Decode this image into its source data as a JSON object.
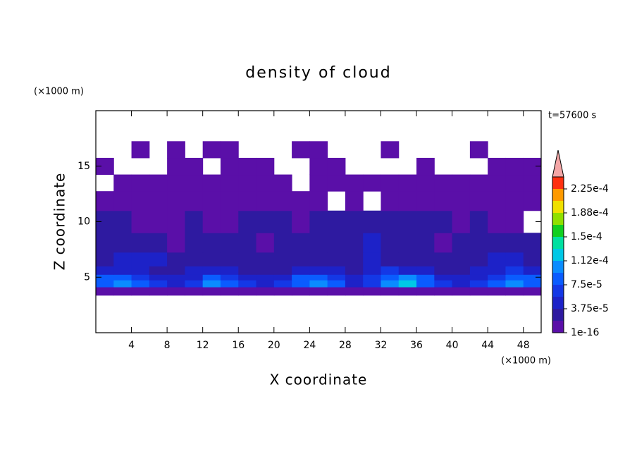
{
  "chart_data": {
    "type": "contour",
    "title": "density of cloud",
    "time_label": "t=57600 s",
    "x_label": "X coordinate",
    "y_label": "Z coordinate",
    "x_unit": "(×1000 m)",
    "y_unit": "(×1000 m)",
    "xlim": [
      0,
      50
    ],
    "ylim": [
      0,
      20
    ],
    "xticks": [
      4,
      8,
      12,
      16,
      20,
      24,
      28,
      32,
      36,
      40,
      44,
      48
    ],
    "yticks": [
      5,
      10,
      15
    ],
    "x": [
      1,
      3,
      5,
      7,
      9,
      11,
      13,
      15,
      17,
      19,
      21,
      23,
      25,
      27,
      29,
      31,
      33,
      35,
      37,
      39,
      41,
      43,
      45,
      47,
      49
    ],
    "y": [
      3.75,
      4.5,
      5,
      5.5,
      6.5,
      8,
      10,
      12,
      13.5,
      15,
      16.5
    ],
    "z": [
      [
        1e-05,
        1e-05,
        1e-05,
        1e-05,
        1e-05,
        1e-05,
        1e-05,
        1e-05,
        1e-05,
        1e-05,
        1e-05,
        1e-05,
        1e-05,
        1e-05,
        1e-05,
        1e-05,
        1e-05,
        1e-05,
        1e-05,
        1e-05,
        1e-05,
        1e-05,
        1e-05,
        1e-05,
        1e-05
      ],
      [
        9e-05,
        0.00011,
        8e-05,
        6e-05,
        5e-05,
        6e-05,
        0.0001,
        9e-05,
        6e-05,
        5e-05,
        6e-05,
        9e-05,
        0.00011,
        8e-05,
        5e-05,
        6e-05,
        0.0001,
        0.00012,
        9e-05,
        6e-05,
        5e-05,
        6e-05,
        8e-05,
        0.0001,
        9e-05
      ],
      [
        8e-05,
        9e-05,
        7e-05,
        5e-05,
        4e-05,
        5e-05,
        8e-05,
        7e-05,
        5e-05,
        4e-05,
        5e-05,
        8e-05,
        9e-05,
        7e-05,
        5e-05,
        6e-05,
        9e-05,
        0.0001,
        8e-05,
        5e-05,
        4e-05,
        5e-05,
        7e-05,
        9e-05,
        8e-05
      ],
      [
        5e-05,
        4e-05,
        4e-05,
        3e-05,
        3e-05,
        4e-05,
        5e-05,
        4e-05,
        3e-05,
        3e-05,
        3e-05,
        4e-05,
        5e-05,
        4e-05,
        3e-05,
        5e-05,
        6e-05,
        5e-05,
        4e-05,
        3e-05,
        3e-05,
        4e-05,
        5e-05,
        6e-05,
        5e-05
      ],
      [
        3e-05,
        4e-05,
        5e-05,
        4e-05,
        3e-05,
        3e-05,
        3e-05,
        3e-05,
        2e-05,
        2e-05,
        3e-05,
        3e-05,
        3e-05,
        3e-05,
        3e-05,
        4e-05,
        3e-05,
        3e-05,
        3e-05,
        2e-05,
        2e-05,
        3e-05,
        4e-05,
        4e-05,
        3e-05
      ],
      [
        2e-05,
        2.5e-05,
        2.5e-05,
        2e-05,
        1e-05,
        2e-05,
        2e-05,
        2e-05,
        2e-05,
        1e-05,
        2e-05,
        2e-05,
        2e-05,
        2e-05,
        2e-05,
        4e-05,
        2e-05,
        2e-05,
        2e-05,
        1e-05,
        2e-05,
        2e-05,
        2e-05,
        2e-05,
        2e-05
      ],
      [
        2e-05,
        2e-05,
        1e-05,
        1e-05,
        1e-05,
        2e-05,
        1e-05,
        1e-05,
        2e-05,
        2e-05,
        2e-05,
        1e-05,
        2e-05,
        2e-05,
        2e-05,
        2e-05,
        2e-05,
        2e-05,
        2e-05,
        2e-05,
        1e-05,
        2e-05,
        1e-05,
        1e-05,
        null
      ],
      [
        1e-05,
        1e-05,
        1e-05,
        1e-05,
        1e-05,
        1e-05,
        1e-05,
        1e-05,
        1e-05,
        1e-05,
        1e-05,
        1e-05,
        1e-05,
        null,
        1e-05,
        null,
        1e-05,
        1e-05,
        1e-05,
        1e-05,
        1e-05,
        1e-05,
        1e-05,
        1e-05,
        1e-05
      ],
      [
        null,
        1e-05,
        1e-05,
        1e-05,
        1e-05,
        1e-05,
        1e-05,
        1e-05,
        1e-05,
        1e-05,
        1e-05,
        null,
        1e-05,
        1e-05,
        1e-05,
        1e-05,
        1e-05,
        1e-05,
        1e-05,
        1e-05,
        1e-05,
        1e-05,
        1e-05,
        1e-05,
        1e-05
      ],
      [
        1e-05,
        null,
        null,
        null,
        1e-05,
        1e-05,
        null,
        1e-05,
        1e-05,
        1e-05,
        null,
        null,
        1e-05,
        1e-05,
        null,
        null,
        null,
        null,
        1e-05,
        null,
        null,
        null,
        1e-05,
        1e-05,
        1e-05
      ],
      [
        null,
        null,
        1e-05,
        null,
        1e-05,
        null,
        1e-05,
        1e-05,
        null,
        null,
        null,
        1e-05,
        1e-05,
        null,
        null,
        null,
        1e-05,
        null,
        null,
        null,
        null,
        1e-05,
        null,
        null,
        null
      ]
    ],
    "levels": [
      1e-16,
      1.875e-05,
      3.75e-05,
      5.625e-05,
      7.5e-05,
      9.375e-05,
      0.0001125,
      0.00013125,
      0.00015,
      0.00016875,
      0.0001875,
      0.00020625,
      0.000225,
      0.00024375
    ],
    "colors": [
      "#5a0fa8",
      "#2e1aa0",
      "#1d22c8",
      "#1438e6",
      "#0a5cff",
      "#0a8cff",
      "#00c8e6",
      "#00e0a0",
      "#10d020",
      "#90e000",
      "#f0e000",
      "#ff9a00",
      "#ff3010"
    ],
    "extend_color": "#f4a6a6",
    "cbticks": [
      {
        "value": 1e-16,
        "label": "1e-16"
      },
      {
        "value": 3.75e-05,
        "label": "3.75e-5"
      },
      {
        "value": 7.5e-05,
        "label": "7.5e-5"
      },
      {
        "value": 0.0001125,
        "label": "1.12e-4"
      },
      {
        "value": 0.00015,
        "label": "1.5e-4"
      },
      {
        "value": 0.0001875,
        "label": "1.88e-4"
      },
      {
        "value": 0.000225,
        "label": "2.25e-4"
      }
    ]
  }
}
